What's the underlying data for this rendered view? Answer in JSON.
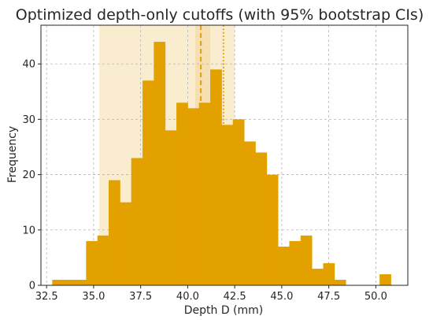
{
  "chart_data": {
    "type": "bar",
    "title": "Optimized depth-only cutoffs (with 95% bootstrap CIs)",
    "xlabel": "Depth D (mm)",
    "ylabel": "Frequency",
    "xlim": [
      32.2,
      51.7
    ],
    "ylim": [
      0,
      47
    ],
    "xticks": [
      32.5,
      35.0,
      37.5,
      40.0,
      42.5,
      45.0,
      47.5,
      50.0
    ],
    "xtick_labels": [
      "32.5",
      "35.0",
      "37.5",
      "40.0",
      "42.5",
      "45.0",
      "47.5",
      "50.0"
    ],
    "yticks": [
      0,
      10,
      20,
      30,
      40
    ],
    "ytick_labels": [
      "0",
      "10",
      "20",
      "30",
      "40"
    ],
    "grid": true,
    "bar_color": "#E3A100",
    "bin_edges": [
      32.8,
      33.4,
      34.0,
      34.6,
      35.2,
      35.8,
      36.4,
      37.0,
      37.6,
      38.2,
      38.8,
      39.4,
      40.0,
      40.6,
      41.2,
      41.8,
      42.4,
      43.0,
      43.6,
      44.2,
      44.8,
      45.4,
      46.0,
      46.6,
      47.2,
      47.8,
      48.4,
      49.0,
      49.6,
      50.2,
      50.8
    ],
    "counts": [
      1,
      1,
      1,
      8,
      9,
      19,
      15,
      23,
      37,
      44,
      28,
      33,
      32,
      33,
      39,
      29,
      30,
      26,
      24,
      20,
      7,
      8,
      9,
      3,
      4,
      1,
      0,
      0,
      0,
      2
    ],
    "ci_bands": [
      {
        "range": [
          35.3,
          42.5
        ],
        "color": "#F7E6BF",
        "opacity": 0.75
      },
      {
        "range": [
          40.4,
          41.2
        ],
        "color": "#F3D9A0",
        "opacity": 0.6
      }
    ],
    "cutoff_lines": [
      {
        "x": 40.7,
        "style": "dashed",
        "color": "#E3A100"
      },
      {
        "x": 41.9,
        "style": "dotted",
        "color": "#E3A100"
      }
    ]
  }
}
